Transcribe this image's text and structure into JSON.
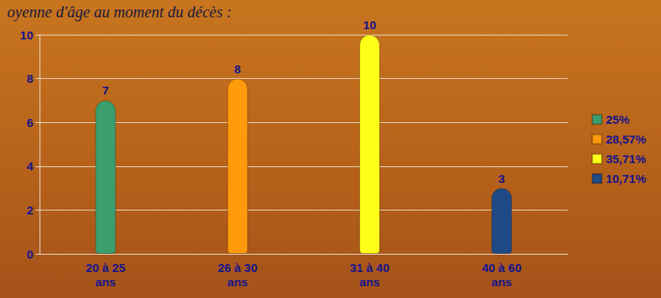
{
  "chart_data": {
    "type": "bar",
    "title": "oyenne d'âge au moment du décès :",
    "categories": [
      "20 à 25 ans",
      "26 à 30 ans",
      "31 à 40 ans",
      "40 à 60 ans"
    ],
    "series": [
      {
        "name": "25%",
        "color": "#3c9e6e",
        "values": [
          7,
          null,
          null,
          null
        ]
      },
      {
        "name": "28,57%",
        "color": "#ff9a0a",
        "values": [
          null,
          8,
          null,
          null
        ]
      },
      {
        "name": "35,71%",
        "color": "#ffff1a",
        "values": [
          null,
          null,
          10,
          null
        ]
      },
      {
        "name": "10,71%",
        "color": "#1f4a86",
        "values": [
          null,
          null,
          null,
          3
        ]
      }
    ],
    "ylim": [
      0,
      10
    ],
    "yticks": [
      0,
      2,
      4,
      6,
      8,
      10
    ],
    "grid": true,
    "legend": "right",
    "data_labels": true
  }
}
